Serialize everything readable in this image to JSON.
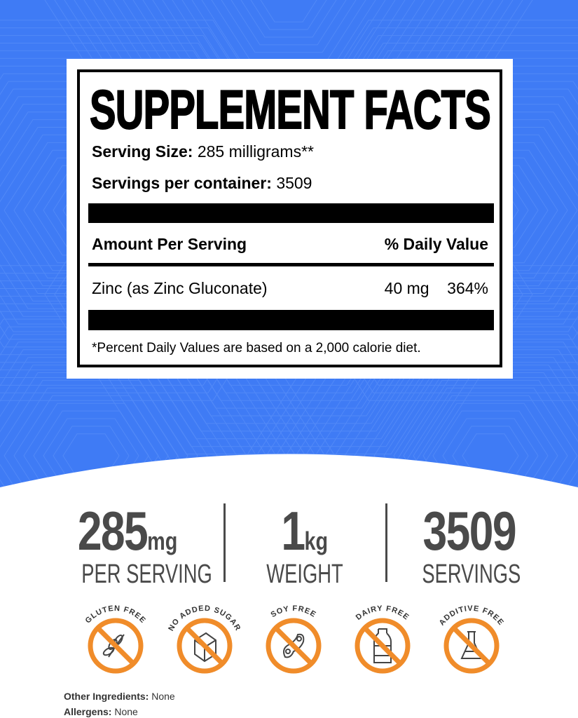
{
  "colors": {
    "background_blue": "#3f7bf5",
    "badge_orange": "#f08c2a",
    "text_gray": "#4a4a4a"
  },
  "facts": {
    "title": "SUPPLEMENT FACTS",
    "serving_size_label": "Serving Size:",
    "serving_size_value": "285 milligrams**",
    "servings_label": "Servings per container:",
    "servings_value": "3509",
    "amount_header": "Amount Per Serving",
    "dv_header": "% Daily Value",
    "ingredients": [
      {
        "name": "Zinc (as Zinc Gluconate)",
        "amount": "40 mg",
        "dv": "364%"
      }
    ],
    "footnote": "*Percent Daily Values are based on a 2,000 calorie diet."
  },
  "stats": [
    {
      "value": "285",
      "unit": "mg",
      "label": "PER SERVING"
    },
    {
      "value": "1",
      "unit": "kg",
      "label": "WEIGHT"
    },
    {
      "value": "3509",
      "unit": "",
      "label": "SERVINGS"
    }
  ],
  "badges": [
    {
      "label": "GLUTEN FREE",
      "icon": "wheat-icon"
    },
    {
      "label": "NO ADDED SUGAR",
      "icon": "sugar-cube-icon"
    },
    {
      "label": "SOY FREE",
      "icon": "soybean-icon"
    },
    {
      "label": "DAIRY FREE",
      "icon": "milk-bottle-icon"
    },
    {
      "label": "ADDITIVE FREE",
      "icon": "flask-icon"
    }
  ],
  "other_ingredients": {
    "label": "Other Ingredients:",
    "value": "None"
  },
  "allergens": {
    "label": "Allergens:",
    "value": "None"
  }
}
